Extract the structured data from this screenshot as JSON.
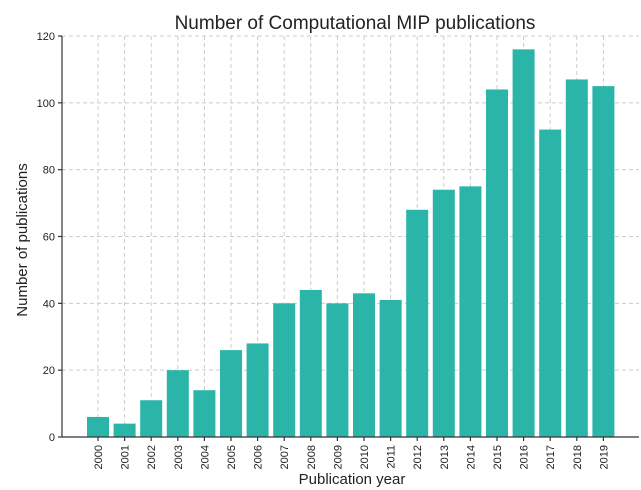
{
  "chart_data": {
    "type": "bar",
    "title": "Number of Computational MIP publications",
    "xlabel": "Publication year",
    "ylabel": "Number of publications",
    "categories": [
      "2000",
      "2001",
      "2002",
      "2003",
      "2004",
      "2005",
      "2006",
      "2007",
      "2008",
      "2009",
      "2010",
      "2011",
      "2012",
      "2013",
      "2014",
      "2015",
      "2016",
      "2017",
      "2018",
      "2019"
    ],
    "values": [
      6,
      4,
      11,
      20,
      14,
      26,
      28,
      40,
      44,
      40,
      43,
      41,
      68,
      74,
      75,
      104,
      116,
      92,
      107,
      105
    ],
    "ylim": [
      0,
      120
    ],
    "yticks": [
      0,
      20,
      40,
      60,
      80,
      100,
      120
    ],
    "bar_color": "#2ab5a8",
    "grid": true,
    "legend": "none"
  }
}
